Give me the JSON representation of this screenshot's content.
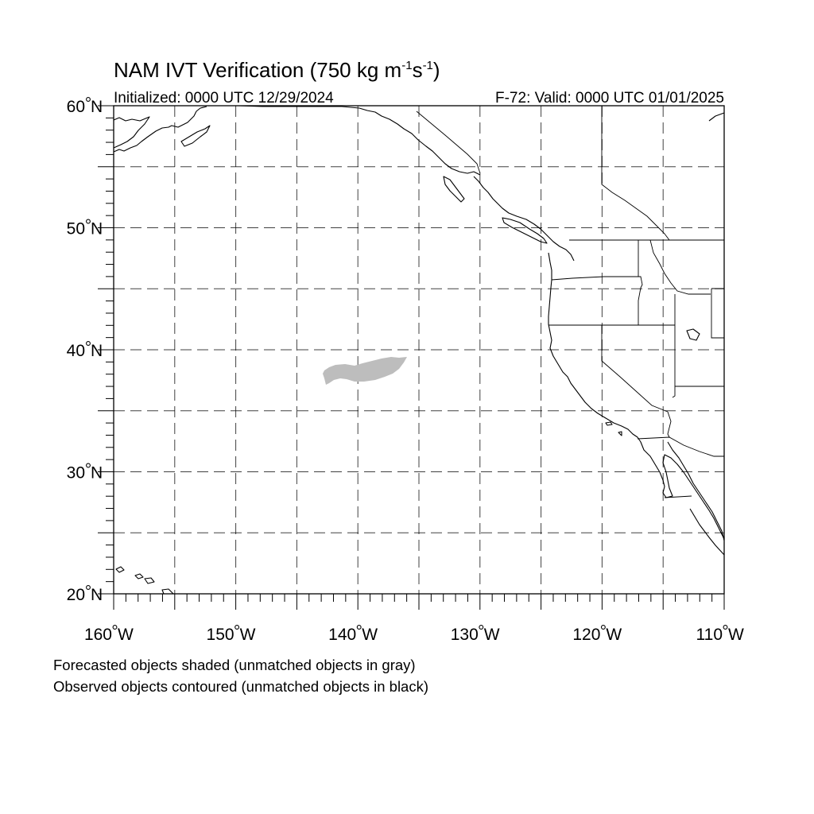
{
  "title": {
    "main": "NAM IVT Verification (750 kg m",
    "sup1": "-1",
    "mid": "s",
    "sup2": "-1",
    "end": ")"
  },
  "initialized": "Initialized: 0000 UTC 12/29/2024",
  "valid": "F-72: Valid: 0000 UTC 01/01/2025",
  "lat_labels": [
    {
      "deg": 60,
      "label": "60",
      "hemi": "N"
    },
    {
      "deg": 50,
      "label": "50",
      "hemi": "N"
    },
    {
      "deg": 40,
      "label": "40",
      "hemi": "N"
    },
    {
      "deg": 30,
      "label": "30",
      "hemi": "N"
    },
    {
      "deg": 20,
      "label": "20",
      "hemi": "N"
    }
  ],
  "lon_labels": [
    {
      "deg": -160,
      "label": "160",
      "hemi": "W"
    },
    {
      "deg": -150,
      "label": "150",
      "hemi": "W"
    },
    {
      "deg": -140,
      "label": "140",
      "hemi": "W"
    },
    {
      "deg": -130,
      "label": "130",
      "hemi": "W"
    },
    {
      "deg": -120,
      "label": "120",
      "hemi": "W"
    },
    {
      "deg": -110,
      "label": "110",
      "hemi": "W"
    }
  ],
  "map_extent": {
    "lon": [
      -160,
      -110
    ],
    "lat": [
      20,
      60
    ]
  },
  "grid_spacing_deg": 5,
  "minor_tick_deg": 1,
  "objects": {
    "forecast_unmatched_color": "#bdbdbd",
    "observed_unmatched_color": "#000000",
    "forecast_count": 1,
    "observed_count": 0
  },
  "footnotes": [
    "Forecasted objects shaded (unmatched objects in gray)",
    "Observed objects contoured (unmatched objects in black)"
  ]
}
